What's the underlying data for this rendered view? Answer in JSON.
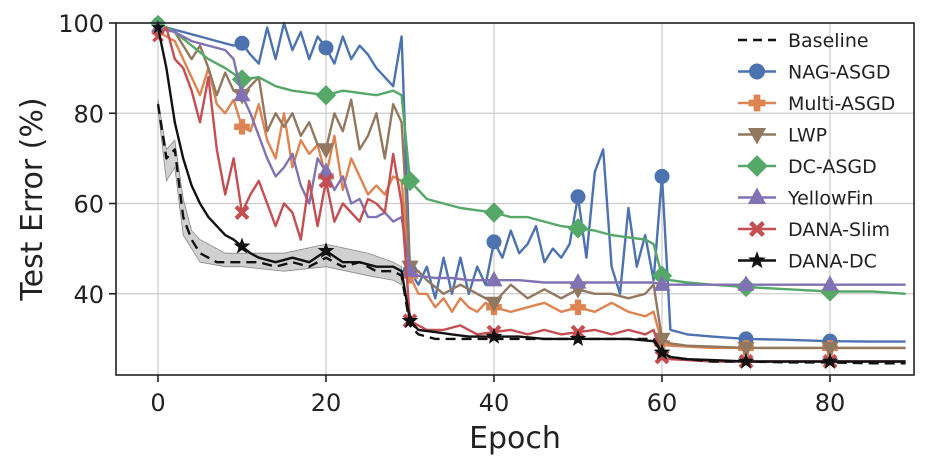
{
  "chart_data": {
    "type": "line",
    "xlabel": "Epoch",
    "ylabel": "Test Error (%)",
    "xlim": [
      -5,
      90
    ],
    "ylim": [
      22,
      100
    ],
    "xticks": [
      0,
      20,
      40,
      60,
      80
    ],
    "yticks": [
      40,
      60,
      80,
      100
    ],
    "grid": true,
    "legend_position": "top-right",
    "marker_every": 10,
    "series": [
      {
        "name": "Baseline",
        "color": "#111111",
        "dash": "10,6",
        "marker": "none",
        "x": [
          0,
          1,
          2,
          3,
          4,
          5,
          6,
          7,
          8,
          9,
          10,
          12,
          14,
          16,
          18,
          20,
          22,
          24,
          26,
          28,
          29,
          30,
          31,
          33,
          35,
          37,
          40,
          43,
          46,
          50,
          53,
          56,
          59,
          60,
          61,
          63,
          66,
          70,
          75,
          80,
          85,
          89
        ],
        "y": [
          82,
          70,
          72,
          57,
          52,
          49,
          48,
          47,
          47,
          47,
          47,
          47,
          46,
          47,
          46,
          48,
          46,
          47,
          45,
          45,
          44,
          33,
          31,
          30,
          30,
          30,
          30,
          30,
          30,
          30,
          30,
          30,
          30,
          27,
          26,
          25.5,
          25,
          25,
          24.8,
          24.8,
          24.6,
          24.6
        ],
        "band": {
          "x": [
            0,
            1,
            2,
            3,
            4,
            5,
            8,
            10,
            15,
            20,
            25,
            28,
            29
          ],
          "lo": [
            81,
            65,
            68,
            53,
            50,
            47,
            46,
            46,
            45,
            46,
            44,
            43,
            42
          ],
          "hi": [
            83,
            72,
            74,
            61,
            54,
            52,
            49,
            49,
            49,
            51,
            49,
            47,
            46
          ]
        }
      },
      {
        "name": "NAG-ASGD",
        "color": "#4C72B0",
        "marker": "circle",
        "x": [
          0,
          1,
          3,
          5,
          7,
          9,
          10,
          11,
          12,
          13,
          14,
          15,
          16,
          17,
          18,
          19,
          20,
          21,
          22,
          23,
          24,
          25,
          26,
          27,
          28,
          29,
          30,
          31,
          32,
          33,
          34,
          35,
          36,
          37,
          38,
          39,
          40,
          41,
          42,
          43,
          44,
          45,
          46,
          47,
          48,
          49,
          50,
          51,
          52,
          53,
          54,
          55,
          56,
          57,
          58,
          59,
          60,
          61,
          63,
          66,
          70,
          75,
          80,
          85,
          89
        ],
        "y": [
          100,
          99,
          98,
          97,
          96,
          95,
          95.5,
          93,
          91,
          99,
          92,
          100,
          94,
          98,
          92,
          97,
          94.5,
          91,
          97,
          92,
          95,
          93,
          90,
          88,
          86,
          97,
          45,
          42,
          46,
          39,
          48,
          40,
          48,
          40,
          46,
          42,
          51.5,
          48,
          54,
          49,
          51,
          55,
          47,
          50,
          48,
          51,
          61.5,
          48,
          67,
          72,
          46,
          40,
          59,
          46,
          53,
          43,
          66,
          32,
          31,
          30.5,
          30,
          29.8,
          29.5,
          29.4,
          29.4
        ]
      },
      {
        "name": "Multi-ASGD",
        "color": "#DD8452",
        "marker": "plus",
        "x": [
          0,
          2,
          4,
          5,
          6,
          7,
          8,
          9,
          10,
          11,
          12,
          13,
          14,
          15,
          16,
          17,
          18,
          19,
          20,
          21,
          22,
          23,
          24,
          25,
          26,
          27,
          28,
          29,
          30,
          31,
          32,
          33,
          34,
          35,
          36,
          37,
          38,
          39,
          40,
          42,
          44,
          46,
          48,
          50,
          52,
          54,
          56,
          58,
          59,
          60,
          61,
          63,
          66,
          70,
          75,
          80,
          85,
          89
        ],
        "y": [
          98,
          96,
          88,
          84,
          90,
          82,
          80,
          83,
          77,
          76,
          82,
          74,
          70,
          80,
          68,
          74,
          71,
          73,
          66,
          75,
          63,
          70,
          66,
          62,
          64,
          62,
          66,
          65,
          44,
          40,
          40,
          37,
          39,
          36,
          39,
          37,
          36,
          38,
          37,
          36,
          37,
          38,
          36,
          37,
          36,
          38,
          36,
          35,
          36,
          29,
          28.5,
          28.3,
          28,
          28,
          28,
          28,
          28,
          28
        ]
      },
      {
        "name": "LWP",
        "color": "#937860",
        "marker": "triangle-down",
        "x": [
          0,
          2,
          4,
          5,
          6,
          7,
          8,
          9,
          10,
          11,
          12,
          13,
          14,
          15,
          16,
          17,
          18,
          19,
          20,
          21,
          22,
          23,
          24,
          25,
          26,
          27,
          28,
          29,
          30,
          31,
          32,
          34,
          36,
          38,
          40,
          42,
          44,
          46,
          48,
          50,
          52,
          54,
          56,
          58,
          59,
          60,
          61,
          63,
          66,
          70,
          75,
          80,
          85,
          89
        ],
        "y": [
          99,
          98,
          92,
          95,
          90,
          84,
          89,
          85,
          84,
          86,
          88,
          76,
          80,
          77,
          80,
          75,
          78,
          73,
          72,
          80,
          76,
          83,
          72,
          75,
          80,
          70,
          82,
          78,
          46,
          45,
          43,
          40,
          42,
          40,
          38,
          42,
          39,
          41,
          39,
          41,
          40,
          40,
          39,
          40,
          42,
          30,
          29,
          28.5,
          28.3,
          28,
          28,
          28,
          28,
          28
        ]
      },
      {
        "name": "DC-ASGD",
        "color": "#55A868",
        "marker": "diamond",
        "x": [
          0,
          2,
          4,
          6,
          8,
          10,
          12,
          14,
          16,
          18,
          20,
          22,
          24,
          26,
          28,
          29,
          30,
          31,
          32,
          34,
          36,
          38,
          40,
          42,
          44,
          46,
          48,
          50,
          52,
          54,
          56,
          58,
          59,
          60,
          61,
          63,
          66,
          70,
          75,
          80,
          85,
          89
        ],
        "y": [
          100,
          98,
          95,
          92,
          90,
          87.5,
          88,
          86,
          85,
          84.5,
          84,
          85,
          84.5,
          84,
          85,
          84,
          65,
          63,
          61,
          60,
          59,
          58.5,
          58,
          57,
          57,
          56,
          55,
          54.5,
          54,
          53,
          52.5,
          52,
          51,
          44,
          43,
          42.5,
          42,
          41.5,
          41,
          40.5,
          40.5,
          40
        ]
      },
      {
        "name": "YellowFin",
        "color": "#8172B3",
        "marker": "triangle-up",
        "x": [
          0,
          2,
          4,
          6,
          8,
          9,
          10,
          11,
          12,
          13,
          14,
          15,
          16,
          17,
          18,
          19,
          20,
          21,
          22,
          23,
          24,
          25,
          26,
          27,
          28,
          29,
          30,
          31,
          33,
          35,
          37,
          40,
          43,
          46,
          50,
          53,
          56,
          59,
          60,
          61,
          63,
          66,
          70,
          75,
          80,
          85,
          89
        ],
        "y": [
          99,
          98,
          96,
          95,
          94,
          92,
          84,
          80,
          75,
          70,
          66,
          68,
          71,
          64,
          60,
          70,
          67,
          63,
          66,
          60,
          61,
          57,
          57,
          58,
          56,
          57,
          45,
          44,
          43.5,
          43.5,
          43,
          43,
          43,
          42.5,
          42.5,
          42.5,
          42.5,
          42.5,
          42,
          42,
          42,
          42,
          42,
          42,
          42,
          42,
          42
        ]
      },
      {
        "name": "DANA-Slim",
        "color": "#C44E52",
        "marker": "x",
        "x": [
          0,
          1,
          2,
          3,
          4,
          5,
          6,
          7,
          8,
          9,
          10,
          11,
          12,
          13,
          14,
          15,
          16,
          17,
          18,
          19,
          20,
          21,
          22,
          23,
          24,
          25,
          26,
          27,
          28,
          29,
          30,
          31,
          32,
          34,
          36,
          38,
          40,
          42,
          44,
          46,
          48,
          50,
          52,
          54,
          56,
          58,
          59,
          60,
          61,
          63,
          66,
          70,
          75,
          80,
          85,
          89
        ],
        "y": [
          97,
          99,
          92,
          90,
          85,
          78,
          88,
          72,
          62,
          70,
          58,
          62,
          65,
          60,
          55,
          60,
          58,
          52,
          65,
          55,
          65,
          56,
          60,
          58,
          56,
          61,
          60,
          58,
          71,
          60,
          34,
          33,
          32,
          32,
          33,
          31,
          31.5,
          32,
          31,
          32,
          31,
          31.5,
          32,
          31,
          32,
          31,
          32,
          26,
          25.5,
          25.3,
          25,
          25,
          25,
          25,
          25,
          25
        ]
      },
      {
        "name": "DANA-DC",
        "color": "#111111",
        "marker": "star",
        "x": [
          0,
          1,
          2,
          3,
          4,
          5,
          6,
          7,
          8,
          9,
          10,
          11,
          12,
          14,
          16,
          18,
          20,
          22,
          24,
          26,
          28,
          29,
          30,
          31,
          33,
          35,
          37,
          40,
          43,
          46,
          50,
          53,
          56,
          59,
          60,
          61,
          63,
          66,
          70,
          75,
          80,
          85,
          89
        ],
        "y": [
          99,
          90,
          78,
          70,
          64,
          60,
          57,
          55,
          53,
          52,
          50.5,
          49,
          48,
          47,
          48,
          47,
          49.5,
          47,
          47,
          46,
          46,
          45,
          34,
          32,
          31.5,
          31,
          30.5,
          30.5,
          30.5,
          30,
          30,
          30,
          30,
          29.5,
          27,
          26,
          25.5,
          25.3,
          25,
          25,
          25,
          25,
          25
        ]
      }
    ]
  }
}
